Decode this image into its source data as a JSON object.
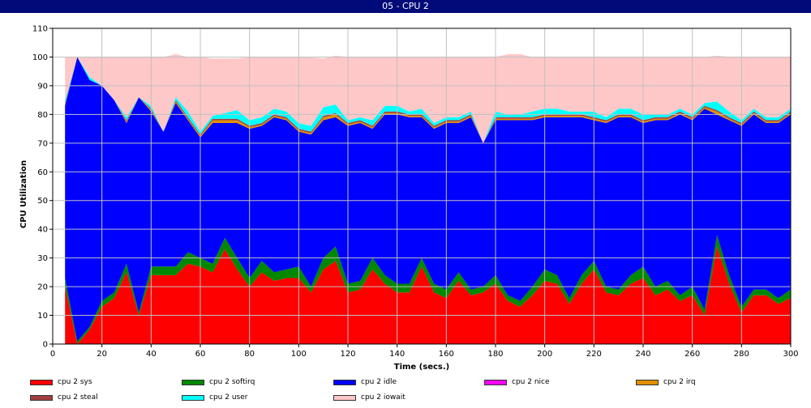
{
  "window": {
    "title": "05 - CPU 2"
  },
  "chart_data": {
    "type": "area",
    "stacked": true,
    "title": "",
    "xlabel": "Time (secs.)",
    "ylabel": "CPU Utilization",
    "xlim": [
      0,
      300
    ],
    "ylim": [
      0,
      110
    ],
    "xticks": [
      0,
      20,
      40,
      60,
      80,
      100,
      120,
      140,
      160,
      180,
      200,
      220,
      240,
      260,
      280,
      300
    ],
    "yticks": [
      0,
      10,
      20,
      30,
      40,
      50,
      60,
      70,
      80,
      90,
      100,
      110
    ],
    "grid": true,
    "legend_position": "bottom",
    "x": [
      5,
      10,
      15,
      20,
      25,
      30,
      35,
      40,
      45,
      50,
      55,
      60,
      65,
      70,
      75,
      80,
      85,
      90,
      95,
      100,
      105,
      110,
      115,
      120,
      125,
      130,
      135,
      140,
      145,
      150,
      155,
      160,
      165,
      170,
      175,
      180,
      185,
      190,
      195,
      200,
      205,
      210,
      215,
      220,
      225,
      230,
      235,
      240,
      245,
      250,
      255,
      260,
      265,
      270,
      275,
      280,
      285,
      290,
      295,
      300
    ],
    "series": [
      {
        "name": "cpu 2 sys",
        "color": "#ff0000",
        "values": [
          20,
          0,
          5,
          13,
          16,
          25,
          10,
          24,
          24,
          24,
          28,
          27,
          25,
          33,
          26,
          20,
          25,
          22,
          23,
          23,
          18,
          26,
          29,
          18,
          19,
          26,
          21,
          18,
          18,
          27,
          18,
          16,
          22,
          17,
          18,
          21,
          15,
          13,
          17,
          22,
          21,
          14,
          21,
          26,
          18,
          17,
          21,
          23,
          17,
          19,
          15,
          17,
          10,
          34,
          21,
          11,
          17,
          17,
          14,
          16
        ]
      },
      {
        "name": "cpu 2 softirq",
        "color": "#008800",
        "values": [
          3,
          1,
          1,
          2,
          2,
          3,
          1,
          3,
          3,
          3,
          4,
          3,
          3,
          4,
          4,
          3,
          4,
          3,
          3,
          4,
          2,
          4,
          5,
          3,
          3,
          4,
          3,
          3,
          3,
          3,
          3,
          3,
          3,
          2,
          2,
          3,
          2,
          2,
          3,
          4,
          3,
          2,
          3,
          3,
          2,
          2,
          3,
          4,
          3,
          3,
          2,
          3,
          2,
          4,
          3,
          2,
          2,
          2,
          2,
          3
        ]
      },
      {
        "name": "cpu 2 idle",
        "color": "#0000ff",
        "values": [
          60,
          99,
          86,
          75,
          67,
          49,
          75,
          54,
          47,
          57,
          46,
          42,
          49,
          40,
          47,
          52,
          47,
          54,
          52,
          47,
          53,
          48,
          45,
          55,
          55,
          45,
          56,
          59,
          58,
          49,
          54,
          58,
          52,
          60,
          50,
          54,
          61,
          63,
          58,
          53,
          55,
          63,
          55,
          49,
          57,
          60,
          55,
          50,
          58,
          56,
          63,
          58,
          70,
          42,
          54,
          63,
          61,
          58,
          61,
          61
        ]
      },
      {
        "name": "cpu 2 nice",
        "color": "#ff00ff",
        "values": [
          0,
          0,
          0,
          0,
          0,
          0,
          0,
          0,
          0,
          0,
          0,
          0,
          0,
          0,
          0,
          0,
          0,
          0,
          0,
          0,
          0,
          0,
          0,
          0,
          0,
          0,
          0,
          0,
          0,
          0,
          0,
          0,
          0,
          0,
          0,
          0,
          0,
          0,
          0,
          0,
          0,
          0,
          0,
          0,
          0,
          0,
          0,
          0,
          0,
          0,
          0,
          0,
          0,
          0,
          0,
          0,
          0,
          0,
          0,
          0
        ]
      },
      {
        "name": "cpu 2 irq",
        "color": "#e09000",
        "values": [
          0.5,
          0,
          0,
          0,
          0,
          0.5,
          0,
          0.5,
          0,
          0.5,
          0.5,
          0.5,
          1,
          1,
          1,
          0.5,
          0.5,
          0.5,
          0.5,
          0.5,
          0.5,
          1,
          1,
          0.5,
          0.5,
          0.5,
          0.5,
          0.5,
          0.5,
          0.5,
          0.5,
          0.5,
          0.5,
          0.5,
          0,
          0.5,
          0.5,
          0.5,
          0.5,
          0.5,
          0.5,
          0.5,
          0.5,
          0.5,
          0.5,
          0.5,
          0.5,
          0.5,
          0.5,
          0.5,
          0.5,
          0.5,
          0.5,
          1,
          0.5,
          0.5,
          0.5,
          0.5,
          0.5,
          0.5
        ]
      },
      {
        "name": "cpu 2 steal",
        "color": "#a04040",
        "values": [
          0.5,
          0,
          0,
          0,
          0,
          0.5,
          0,
          0.5,
          0,
          0.5,
          0.5,
          0.5,
          0.5,
          0.5,
          0.5,
          0.5,
          0.5,
          0.5,
          0.5,
          0.5,
          0.5,
          0.5,
          0.5,
          0.5,
          0.5,
          0.5,
          0.5,
          0.5,
          0.5,
          0.5,
          0.5,
          0.5,
          0.5,
          0.5,
          0,
          0.5,
          0.5,
          0.5,
          0.5,
          0.5,
          0.5,
          0.5,
          0.5,
          0.5,
          0.5,
          0.5,
          0.5,
          0.5,
          0.5,
          0.5,
          0.5,
          0.5,
          0.5,
          0.5,
          0.5,
          0.5,
          0.5,
          0.5,
          0.5,
          0.5
        ]
      },
      {
        "name": "cpu 2 user",
        "color": "#00ffff",
        "values": [
          1,
          0,
          1,
          0,
          0,
          1,
          0,
          1,
          0,
          1,
          2,
          1,
          1,
          2,
          3,
          2,
          2,
          2,
          2,
          2,
          2,
          3,
          3,
          1,
          1,
          2,
          2,
          2,
          1,
          2,
          1,
          1,
          1,
          1,
          0,
          2,
          1,
          1,
          2,
          2,
          2,
          1,
          1,
          2,
          1,
          2,
          2,
          2,
          1,
          1,
          1,
          1,
          1,
          3,
          2,
          1,
          1,
          1,
          1,
          1
        ]
      },
      {
        "name": "cpu 2 iowait",
        "color": "#ffc8c8",
        "values": [
          15,
          0,
          7,
          10,
          15,
          21,
          14,
          17,
          26,
          15,
          19,
          26,
          20,
          19,
          18,
          22,
          21,
          18,
          19,
          23,
          24,
          17,
          17,
          22,
          21,
          22,
          17,
          17,
          19,
          18,
          23,
          21,
          21,
          19,
          30,
          19,
          21,
          21,
          19,
          18,
          18,
          19,
          19,
          19,
          21,
          18,
          18,
          20,
          20,
          20,
          18,
          20,
          16,
          16,
          19,
          22,
          18,
          21,
          21,
          18
        ]
      }
    ]
  }
}
